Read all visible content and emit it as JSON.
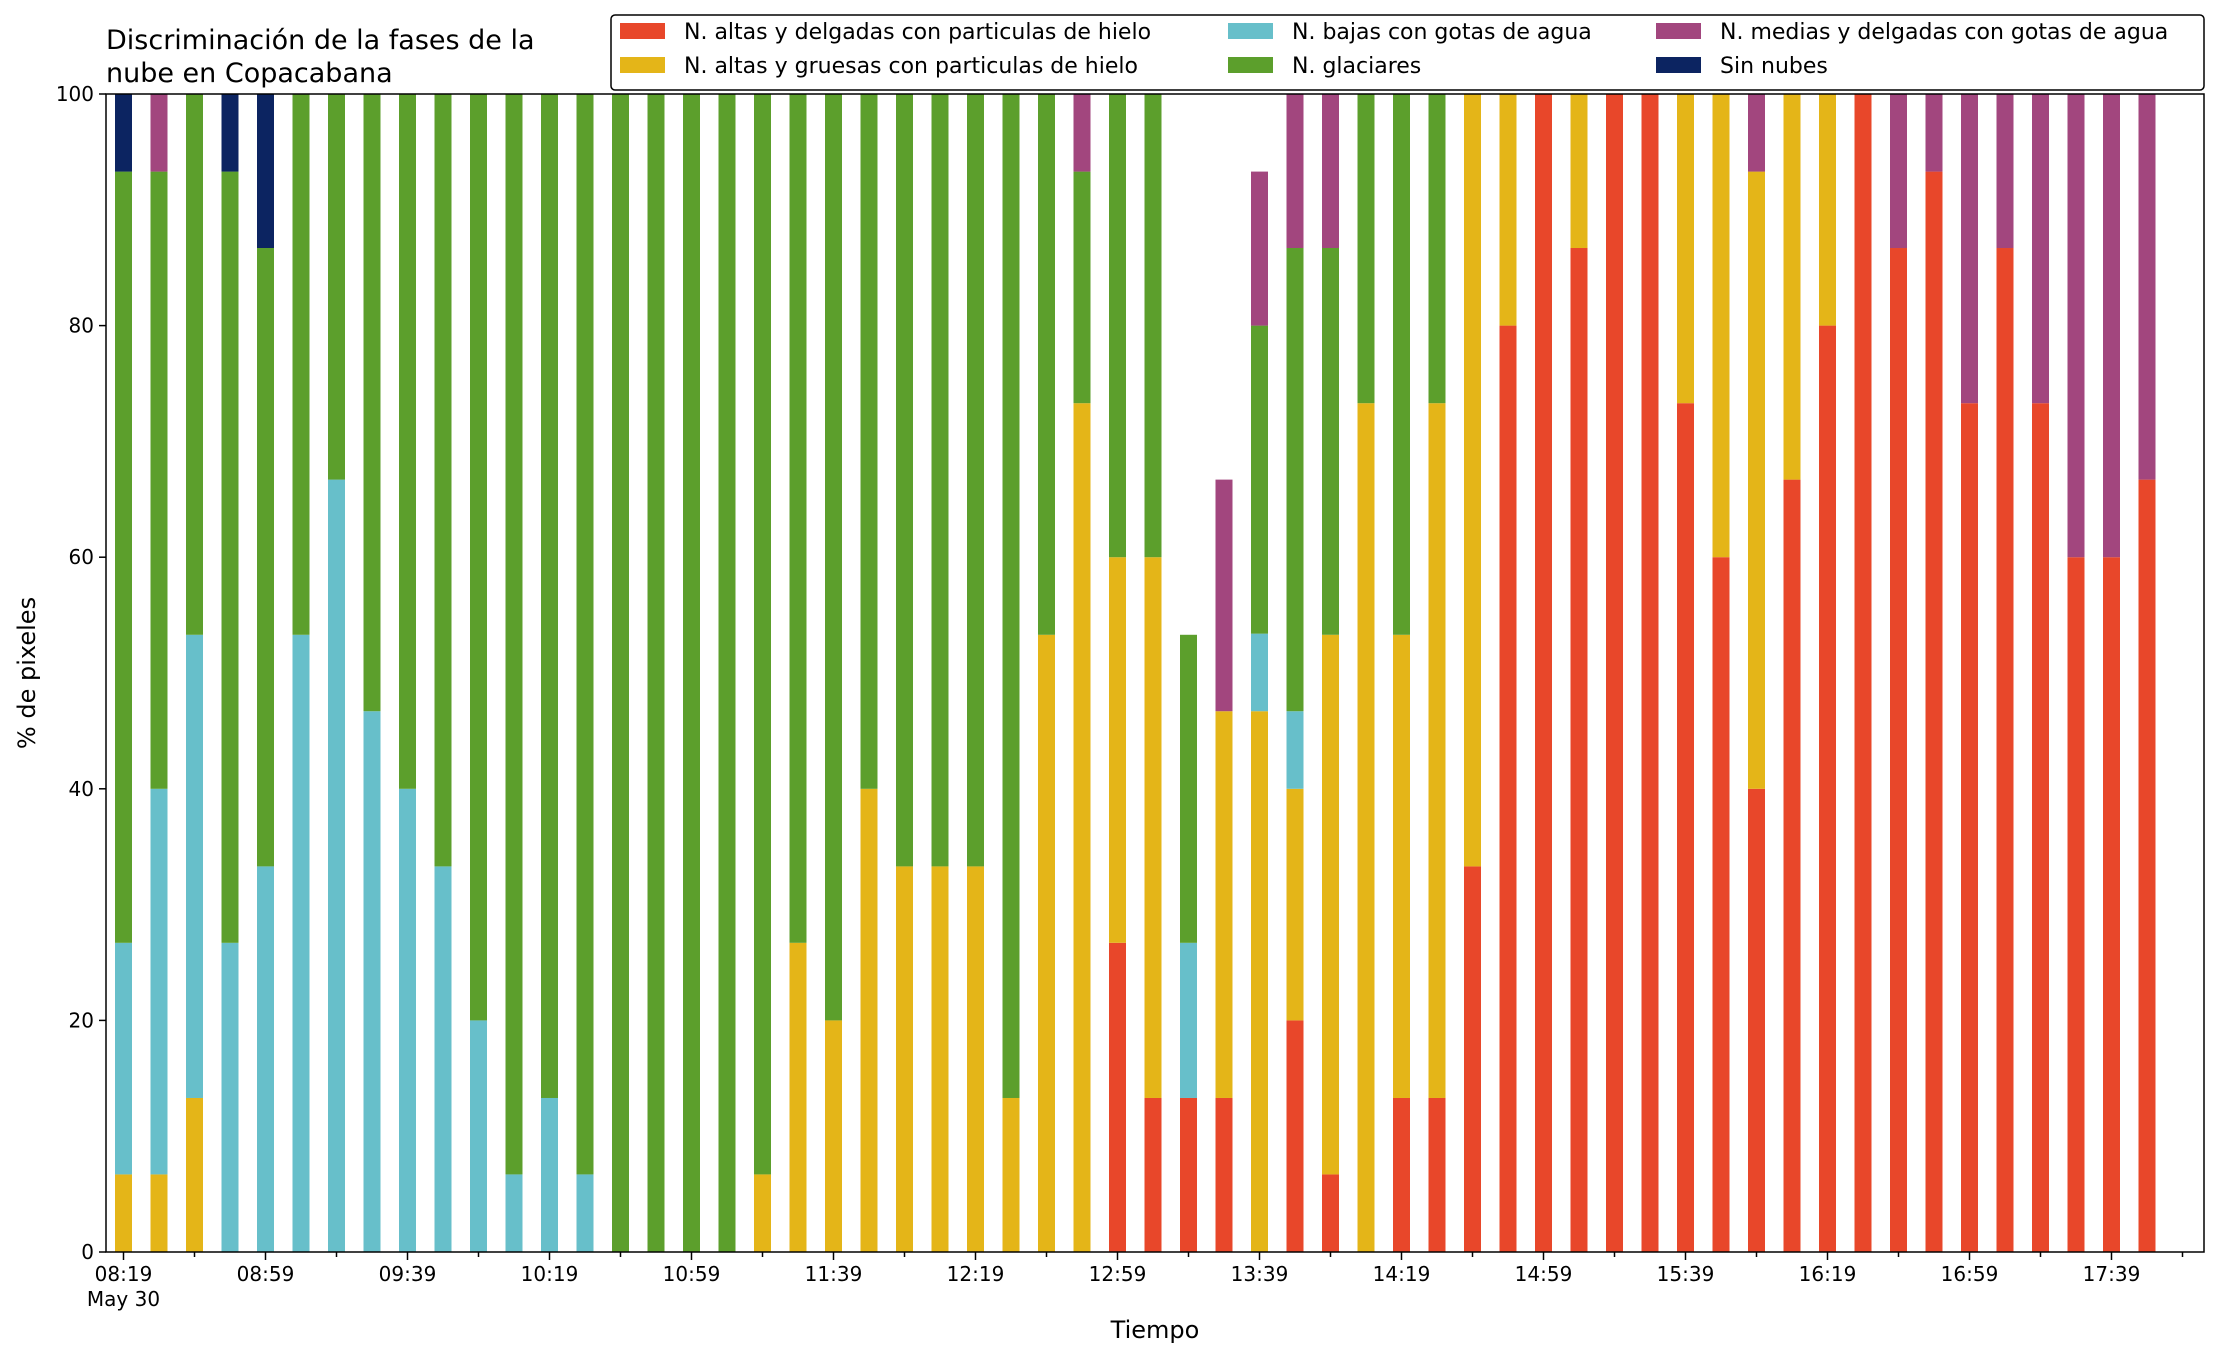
{
  "chart_data": {
    "type": "bar",
    "stacked": true,
    "title": "Discriminación de la fases de la nube en Copacabana",
    "title_lines": [
      "Discriminación de la fases de la",
      "nube en Copacabana"
    ],
    "xlabel": "Tiempo",
    "ylabel": "% de pixeles",
    "ylim": [
      0,
      100
    ],
    "yticks": [
      "0",
      "20",
      "40",
      "60",
      "80",
      "100"
    ],
    "xtick_labels": [
      "08:19",
      "08:59",
      "09:39",
      "10:19",
      "10:59",
      "11:39",
      "12:19",
      "12:59",
      "13:39",
      "14:19",
      "14:59",
      "15:39",
      "16:19",
      "16:59",
      "17:39"
    ],
    "xdate_label": "May 30",
    "grid": false,
    "legend_position": "top-right",
    "bar_interval_minutes": 10,
    "categories": [
      "08:19",
      "08:29",
      "08:39",
      "08:49",
      "08:59",
      "09:09",
      "09:19",
      "09:29",
      "09:39",
      "09:49",
      "09:59",
      "10:09",
      "10:19",
      "10:29",
      "10:39",
      "10:49",
      "10:59",
      "11:09",
      "11:19",
      "11:29",
      "11:39",
      "11:49",
      "11:59",
      "12:09",
      "12:19",
      "12:29",
      "12:39",
      "12:49",
      "12:59",
      "13:09",
      "13:19",
      "13:29",
      "13:39",
      "13:49",
      "13:59",
      "14:09",
      "14:19",
      "14:29",
      "14:39",
      "14:49",
      "14:59",
      "15:09",
      "15:19",
      "15:29",
      "15:39",
      "15:49",
      "15:59",
      "16:09",
      "16:19",
      "16:29",
      "16:39",
      "16:49",
      "16:59",
      "17:09",
      "17:19",
      "17:29",
      "17:39",
      "17:49"
    ],
    "series": [
      {
        "name": "N. altas y delgadas con particulas de hielo",
        "color": "#E8472A",
        "values": [
          0,
          0,
          0,
          0,
          0,
          0,
          0,
          0,
          0,
          0,
          0,
          0,
          0,
          0,
          0,
          0,
          0,
          0,
          0,
          0,
          0,
          0,
          0,
          0,
          0,
          0,
          0,
          0,
          26.7,
          13.3,
          13.3,
          13.3,
          0,
          20,
          6.7,
          0,
          13.3,
          13.3,
          33.3,
          80,
          100,
          86.7,
          100,
          100,
          73.3,
          60,
          40,
          66.7,
          80,
          100,
          86.7,
          93.3,
          73.3,
          86.7,
          73.3,
          60,
          60,
          66.7
        ]
      },
      {
        "name": "N. altas y gruesas con particulas de hielo",
        "color": "#E4B518",
        "values": [
          6.7,
          6.7,
          13.3,
          0,
          0,
          0,
          0,
          0,
          0,
          0,
          0,
          0,
          0,
          0,
          0,
          0,
          0,
          0,
          6.7,
          26.7,
          20,
          40,
          33.3,
          33.3,
          33.3,
          13.3,
          53.3,
          73.3,
          33.3,
          46.7,
          0,
          33.4,
          46.7,
          20,
          46.6,
          73.3,
          40,
          60,
          66.7,
          20,
          0,
          13.3,
          0,
          0,
          26.7,
          40,
          53.3,
          33.3,
          20,
          0,
          0,
          0,
          0,
          0,
          0,
          0,
          0,
          0
        ]
      },
      {
        "name": "N. bajas con gotas de agua",
        "color": "#67BFCA",
        "values": [
          20,
          33.3,
          40,
          26.7,
          33.3,
          53.3,
          66.7,
          46.7,
          40,
          33.3,
          20,
          6.7,
          13.3,
          6.7,
          0,
          0,
          0,
          0,
          0,
          0,
          0,
          0,
          0,
          0,
          0,
          0,
          0,
          0,
          0,
          0,
          13.4,
          0,
          6.7,
          6.7,
          0,
          0,
          0,
          0,
          0,
          0,
          0,
          0,
          0,
          0,
          0,
          0,
          0,
          0,
          0,
          0,
          0,
          0,
          0,
          0,
          0,
          0,
          0,
          0
        ]
      },
      {
        "name": "N. glaciares",
        "color": "#5C9F2C",
        "values": [
          66.6,
          53.3,
          46.7,
          66.6,
          53.4,
          46.7,
          33.3,
          53.3,
          60,
          66.7,
          80,
          93.3,
          86.7,
          93.3,
          100,
          100,
          100,
          100,
          93.3,
          73.3,
          80,
          60,
          66.7,
          66.7,
          66.7,
          86.7,
          46.7,
          20,
          40,
          40,
          26.6,
          0,
          26.6,
          40,
          33.4,
          26.7,
          46.7,
          26.7,
          0,
          0,
          0,
          0,
          0,
          0,
          0,
          0,
          0,
          0,
          0,
          0,
          0,
          0,
          0,
          0,
          0,
          0,
          0,
          0
        ]
      },
      {
        "name": "N. medias y delgadas con gotas de agua",
        "color": "#A2467E",
        "values": [
          0,
          6.7,
          0,
          0,
          0,
          0,
          0,
          0,
          0,
          0,
          0,
          0,
          0,
          0,
          0,
          0,
          0,
          0,
          0,
          0,
          0,
          0,
          0,
          0,
          0,
          0,
          0,
          6.7,
          0,
          0,
          0,
          20,
          13.3,
          13.3,
          13.3,
          0,
          0,
          0,
          0,
          0,
          0,
          0,
          0,
          0,
          0,
          0,
          6.7,
          0,
          0,
          0,
          13.3,
          6.7,
          26.7,
          13.3,
          26.7,
          40,
          40,
          33.3
        ]
      },
      {
        "name": "Sin nubes",
        "color": "#0C2461",
        "values": [
          6.7,
          0,
          0,
          6.7,
          13.3,
          0,
          0,
          0,
          0,
          0,
          0,
          0,
          0,
          0,
          0,
          0,
          0,
          0,
          0,
          0,
          0,
          0,
          0,
          0,
          0,
          0,
          0,
          0,
          0,
          0,
          0,
          0,
          0,
          0,
          0,
          0,
          0,
          0,
          0,
          0,
          0,
          0,
          0,
          0,
          0,
          0,
          0,
          0,
          0,
          0,
          0,
          0,
          0,
          0,
          0,
          0,
          0,
          0
        ]
      }
    ],
    "legend_order": [
      0,
      1,
      2,
      3,
      4,
      5
    ]
  }
}
